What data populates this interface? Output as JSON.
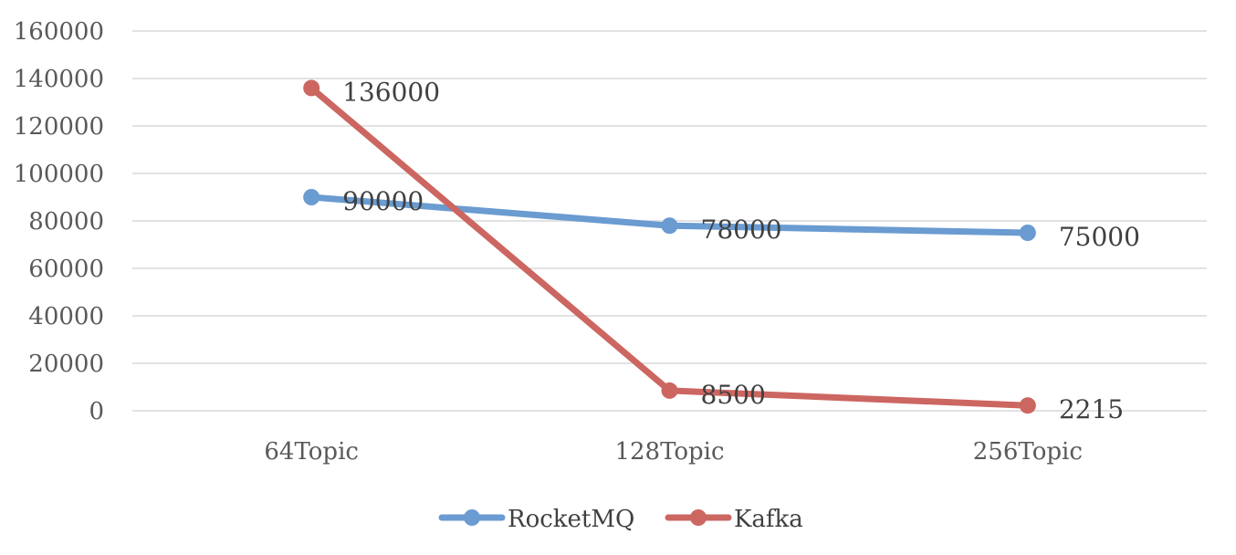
{
  "chart_data": {
    "type": "line",
    "categories": [
      "64Topic",
      "128Topic",
      "256Topic"
    ],
    "series": [
      {
        "name": "RocketMQ",
        "values": [
          90000,
          78000,
          75000
        ],
        "color": "#6a9bd1",
        "labels": [
          "90000",
          "78000",
          "75000"
        ]
      },
      {
        "name": "Kafka",
        "values": [
          136000,
          8500,
          2215
        ],
        "color": "#cc6661",
        "labels": [
          "136000",
          "8500",
          "2215"
        ]
      }
    ],
    "title": "",
    "xlabel": "",
    "ylabel": "",
    "ylim": [
      0,
      160000
    ],
    "yticks": [
      0,
      20000,
      40000,
      60000,
      80000,
      100000,
      120000,
      140000,
      160000
    ],
    "grid": true,
    "legend": "bottom-center"
  }
}
